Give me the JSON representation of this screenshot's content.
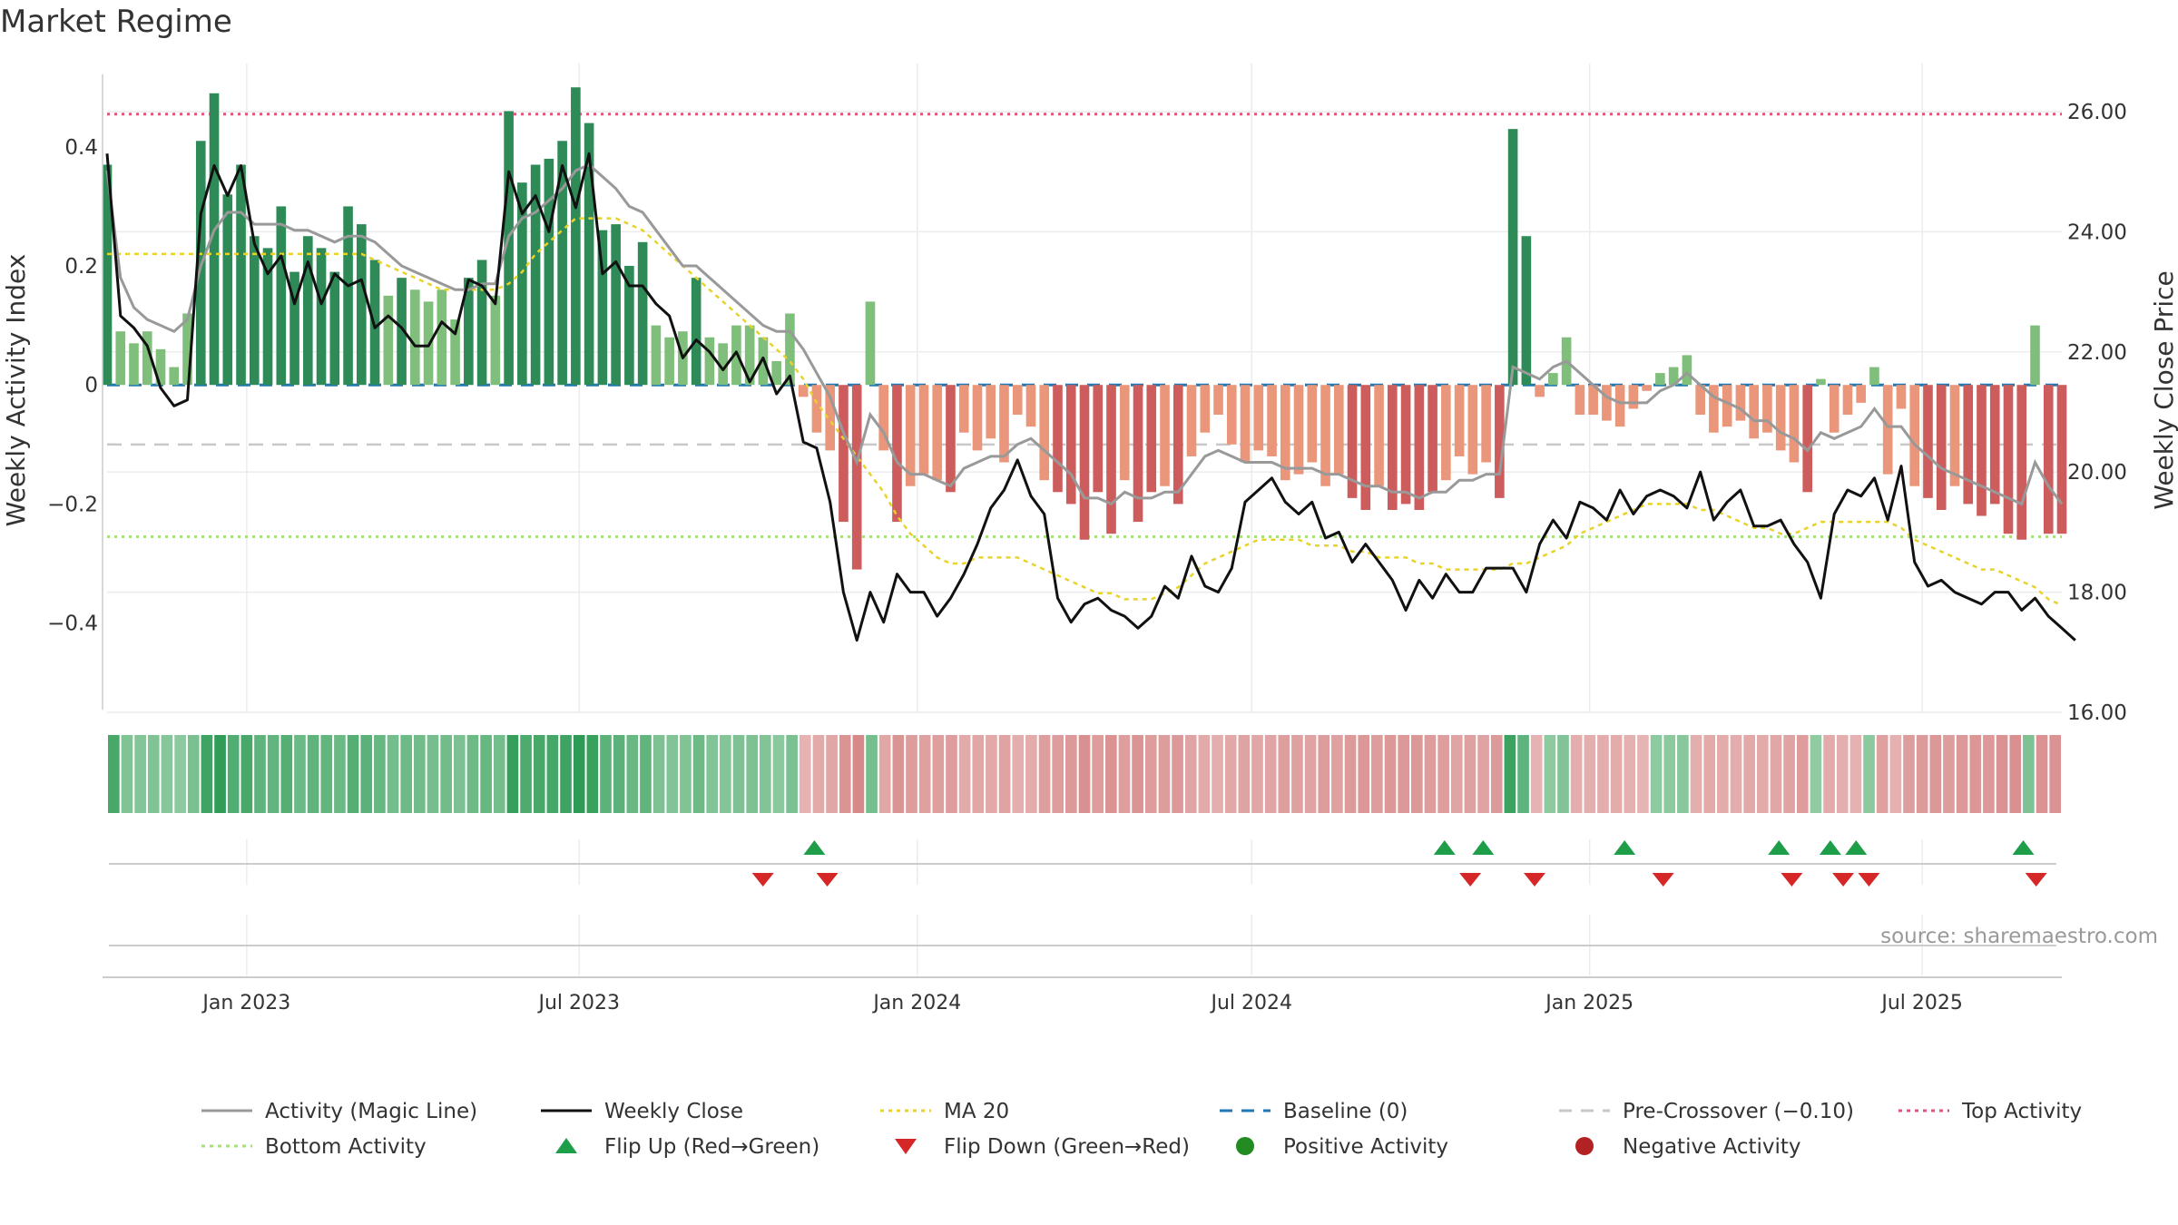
{
  "title": "Market Regime",
  "source": "source: sharemaestro.com",
  "colors": {
    "green_strong": "#2e8b57",
    "green_light": "#7fbf7b",
    "red_strong": "#cd5c5c",
    "red_light": "#e9967a",
    "activity_line": "#999999",
    "close_line": "#111111",
    "ma20": "#e8d32a",
    "baseline": "#1f77b4",
    "pre_crossover": "#c8c8c8",
    "top_activity": "#e0557a",
    "bottom_activity": "#a8e07a",
    "flip_up": "#1f9e4a",
    "flip_down": "#d62728"
  },
  "chart_data": {
    "type": "bar",
    "title": "Market Regime",
    "y_left_label": "Weekly Activity Index",
    "y_right_label": "Weekly Close Price",
    "y_left_ticks": [
      -0.4,
      -0.2,
      0,
      0.2,
      0.4
    ],
    "y_left_tick_labels": [
      "−0.4",
      "−0.2",
      "0",
      "0.2",
      "0.4"
    ],
    "y_left_range": [
      -0.55,
      0.54
    ],
    "y_right_ticks": [
      16,
      18,
      20,
      22,
      24,
      26
    ],
    "y_right_tick_labels": [
      "16.00",
      "18.00",
      "20.00",
      "22.00",
      "24.00",
      "26.00"
    ],
    "y_right_range": [
      16.0,
      26.8
    ],
    "x_start": "2022-10-17",
    "x_end": "2025-09-15",
    "x_ticks": [
      "2023-01-01",
      "2023-07-01",
      "2024-01-01",
      "2024-07-01",
      "2025-01-01",
      "2025-07-01"
    ],
    "x_tick_labels": [
      "Jan 2023",
      "Jul 2023",
      "Jan 2024",
      "Jul 2024",
      "Jan 2025",
      "Jul 2025"
    ],
    "reference_lines": {
      "baseline": 0,
      "pre_crossover": -0.1,
      "top_activity": 0.455,
      "bottom_activity": -0.255
    },
    "activity_index_weekly": [
      0.37,
      0.09,
      0.07,
      0.09,
      0.06,
      0.03,
      0.12,
      0.41,
      0.49,
      0.32,
      0.37,
      0.25,
      0.23,
      0.3,
      0.19,
      0.25,
      0.23,
      0.19,
      0.3,
      0.27,
      0.21,
      0.15,
      0.18,
      0.16,
      0.14,
      0.16,
      0.11,
      0.18,
      0.21,
      0.15,
      0.46,
      0.34,
      0.37,
      0.38,
      0.41,
      0.5,
      0.44,
      0.26,
      0.27,
      0.2,
      0.24,
      0.1,
      0.08,
      0.09,
      0.18,
      0.08,
      0.07,
      0.1,
      0.1,
      0.08,
      0.04,
      0.12,
      -0.02,
      -0.08,
      -0.11,
      -0.23,
      -0.31,
      0.14,
      -0.11,
      -0.23,
      -0.17,
      -0.15,
      -0.16,
      -0.18,
      -0.08,
      -0.11,
      -0.09,
      -0.13,
      -0.05,
      -0.07,
      -0.16,
      -0.18,
      -0.2,
      -0.26,
      -0.18,
      -0.25,
      -0.16,
      -0.23,
      -0.18,
      -0.17,
      -0.2,
      -0.12,
      -0.08,
      -0.05,
      -0.1,
      -0.13,
      -0.11,
      -0.12,
      -0.16,
      -0.15,
      -0.13,
      -0.17,
      -0.15,
      -0.19,
      -0.21,
      -0.17,
      -0.21,
      -0.2,
      -0.21,
      -0.18,
      -0.16,
      -0.12,
      -0.15,
      -0.13,
      -0.19,
      0.43,
      0.25,
      -0.02,
      0.02,
      0.08,
      -0.05,
      -0.05,
      -0.06,
      -0.07,
      -0.04,
      -0.01,
      0.02,
      0.03,
      0.05,
      -0.05,
      -0.08,
      -0.07,
      -0.06,
      -0.09,
      -0.08,
      -0.11,
      -0.13,
      -0.18,
      0.01,
      -0.08,
      -0.05,
      -0.03,
      0.03,
      -0.15,
      -0.04,
      -0.17,
      -0.19,
      -0.21,
      -0.17,
      -0.2,
      -0.22,
      -0.2,
      -0.25,
      -0.26,
      0.1,
      -0.25,
      -0.25
    ],
    "weekly_close": [
      25.3,
      22.6,
      22.4,
      22.1,
      21.4,
      21.1,
      21.2,
      24.3,
      25.1,
      24.6,
      25.1,
      23.8,
      23.3,
      23.6,
      22.8,
      23.5,
      22.8,
      23.3,
      23.1,
      23.2,
      22.4,
      22.6,
      22.4,
      22.1,
      22.1,
      22.5,
      22.3,
      23.2,
      23.1,
      22.8,
      25.0,
      24.3,
      24.6,
      24.0,
      25.1,
      24.4,
      25.3,
      23.3,
      23.5,
      23.1,
      23.1,
      22.8,
      22.6,
      21.9,
      22.2,
      22.0,
      21.7,
      22.0,
      21.5,
      21.9,
      21.3,
      21.6,
      20.5,
      20.4,
      19.5,
      18.0,
      17.2,
      18.0,
      17.5,
      18.3,
      18.0,
      18.0,
      17.6,
      17.9,
      18.3,
      18.8,
      19.4,
      19.7,
      20.2,
      19.6,
      19.3,
      17.9,
      17.5,
      17.8,
      17.9,
      17.7,
      17.6,
      17.4,
      17.6,
      18.1,
      17.9,
      18.6,
      18.1,
      18.0,
      18.4,
      19.5,
      19.7,
      19.9,
      19.5,
      19.3,
      19.5,
      18.9,
      19.0,
      18.5,
      18.8,
      18.5,
      18.2,
      17.7,
      18.2,
      17.9,
      18.3,
      18.0,
      18.0,
      18.4,
      18.4,
      18.4,
      18.0,
      18.8,
      19.2,
      18.9,
      19.5,
      19.4,
      19.2,
      19.7,
      19.3,
      19.6,
      19.7,
      19.6,
      19.4,
      20.0,
      19.2,
      19.5,
      19.7,
      19.1,
      19.1,
      19.2,
      18.8,
      18.5,
      17.9,
      19.3,
      19.7,
      19.6,
      19.9,
      19.2,
      20.1,
      18.5,
      18.1,
      18.2,
      18.0,
      17.9,
      17.8,
      18.0,
      18.0,
      17.7,
      17.9,
      17.6,
      17.4,
      17.2
    ],
    "activity_magic_line": [
      0.36,
      0.18,
      0.13,
      0.11,
      0.1,
      0.09,
      0.11,
      0.2,
      0.26,
      0.29,
      0.29,
      0.27,
      0.27,
      0.27,
      0.26,
      0.26,
      0.25,
      0.24,
      0.25,
      0.25,
      0.24,
      0.22,
      0.2,
      0.19,
      0.18,
      0.17,
      0.16,
      0.16,
      0.17,
      0.17,
      0.25,
      0.28,
      0.29,
      0.31,
      0.33,
      0.36,
      0.37,
      0.35,
      0.33,
      0.3,
      0.29,
      0.26,
      0.23,
      0.2,
      0.2,
      0.18,
      0.16,
      0.14,
      0.12,
      0.1,
      0.09,
      0.09,
      0.06,
      0.02,
      -0.02,
      -0.08,
      -0.13,
      -0.05,
      -0.08,
      -0.13,
      -0.15,
      -0.15,
      -0.16,
      -0.17,
      -0.14,
      -0.13,
      -0.12,
      -0.12,
      -0.1,
      -0.09,
      -0.11,
      -0.13,
      -0.15,
      -0.19,
      -0.19,
      -0.2,
      -0.18,
      -0.19,
      -0.19,
      -0.18,
      -0.18,
      -0.15,
      -0.12,
      -0.11,
      -0.12,
      -0.13,
      -0.13,
      -0.13,
      -0.14,
      -0.14,
      -0.14,
      -0.15,
      -0.15,
      -0.16,
      -0.17,
      -0.17,
      -0.18,
      -0.18,
      -0.19,
      -0.18,
      -0.18,
      -0.16,
      -0.16,
      -0.15,
      -0.15,
      0.03,
      0.02,
      0.01,
      0.03,
      0.04,
      0.02,
      0.0,
      -0.02,
      -0.03,
      -0.03,
      -0.03,
      -0.01,
      0.0,
      0.02,
      0.0,
      -0.02,
      -0.03,
      -0.04,
      -0.06,
      -0.06,
      -0.08,
      -0.09,
      -0.11,
      -0.08,
      -0.09,
      -0.08,
      -0.07,
      -0.04,
      -0.07,
      -0.07,
      -0.1,
      -0.12,
      -0.14,
      -0.15,
      -0.16,
      -0.17,
      -0.18,
      -0.19,
      -0.2,
      -0.13,
      -0.17,
      -0.2
    ],
    "ma20": [
      0.22,
      0.22,
      0.22,
      0.22,
      0.22,
      0.22,
      0.22,
      0.22,
      0.22,
      0.22,
      0.22,
      0.22,
      0.22,
      0.22,
      0.22,
      0.22,
      0.22,
      0.22,
      0.22,
      0.22,
      0.21,
      0.2,
      0.19,
      0.18,
      0.17,
      0.16,
      0.16,
      0.16,
      0.16,
      0.16,
      0.17,
      0.19,
      0.22,
      0.24,
      0.26,
      0.28,
      0.28,
      0.28,
      0.28,
      0.27,
      0.26,
      0.24,
      0.22,
      0.2,
      0.18,
      0.16,
      0.14,
      0.12,
      0.1,
      0.08,
      0.06,
      0.04,
      0.01,
      -0.03,
      -0.06,
      -0.09,
      -0.12,
      -0.15,
      -0.18,
      -0.22,
      -0.25,
      -0.27,
      -0.29,
      -0.3,
      -0.3,
      -0.29,
      -0.29,
      -0.29,
      -0.29,
      -0.3,
      -0.31,
      -0.32,
      -0.33,
      -0.34,
      -0.35,
      -0.35,
      -0.36,
      -0.36,
      -0.36,
      -0.35,
      -0.34,
      -0.32,
      -0.3,
      -0.29,
      -0.28,
      -0.27,
      -0.26,
      -0.26,
      -0.26,
      -0.26,
      -0.27,
      -0.27,
      -0.27,
      -0.28,
      -0.28,
      -0.29,
      -0.29,
      -0.29,
      -0.3,
      -0.3,
      -0.31,
      -0.31,
      -0.31,
      -0.31,
      -0.31,
      -0.3,
      -0.3,
      -0.29,
      -0.28,
      -0.27,
      -0.25,
      -0.24,
      -0.23,
      -0.22,
      -0.21,
      -0.2,
      -0.2,
      -0.2,
      -0.2,
      -0.21,
      -0.21,
      -0.22,
      -0.23,
      -0.24,
      -0.24,
      -0.25,
      -0.25,
      -0.24,
      -0.23,
      -0.23,
      -0.23,
      -0.23,
      -0.23,
      -0.23,
      -0.24,
      -0.26,
      -0.27,
      -0.28,
      -0.29,
      -0.3,
      -0.31,
      -0.31,
      -0.32,
      -0.33,
      -0.34,
      -0.36,
      -0.37
    ]
  },
  "flip_up_dates": [
    "2023-11-06",
    "2024-10-14",
    "2024-11-04",
    "2025-01-20",
    "2025-04-14",
    "2025-05-12",
    "2025-05-26",
    "2025-08-25"
  ],
  "flip_down_dates": [
    "2023-10-09",
    "2023-11-13",
    "2024-10-28",
    "2024-12-02",
    "2025-02-10",
    "2025-04-21",
    "2025-05-19",
    "2025-06-02",
    "2025-09-01"
  ],
  "legend": [
    {
      "label": "Activity (Magic Line)",
      "kind": "line",
      "color": "#999999"
    },
    {
      "label": "Weekly Close",
      "kind": "line",
      "color": "#111111"
    },
    {
      "label": "MA 20",
      "kind": "dotted",
      "color": "#e8d32a"
    },
    {
      "label": "Baseline (0)",
      "kind": "dashed",
      "color": "#1f77b4"
    },
    {
      "label": "Pre-Crossover (−0.10)",
      "kind": "dashed",
      "color": "#c8c8c8"
    },
    {
      "label": "Top Activity",
      "kind": "dotted",
      "color": "#e0557a"
    },
    {
      "label": "Bottom Activity",
      "kind": "dotted",
      "color": "#a8e07a"
    },
    {
      "label": "Flip Up (Red→Green)",
      "kind": "tri-up",
      "color": "#1f9e4a"
    },
    {
      "label": "Flip Down (Green→Red)",
      "kind": "tri-down",
      "color": "#d62728"
    },
    {
      "label": "Positive Activity",
      "kind": "dot",
      "color": "#228b22"
    },
    {
      "label": "Negative Activity",
      "kind": "dot",
      "color": "#b22222"
    }
  ]
}
